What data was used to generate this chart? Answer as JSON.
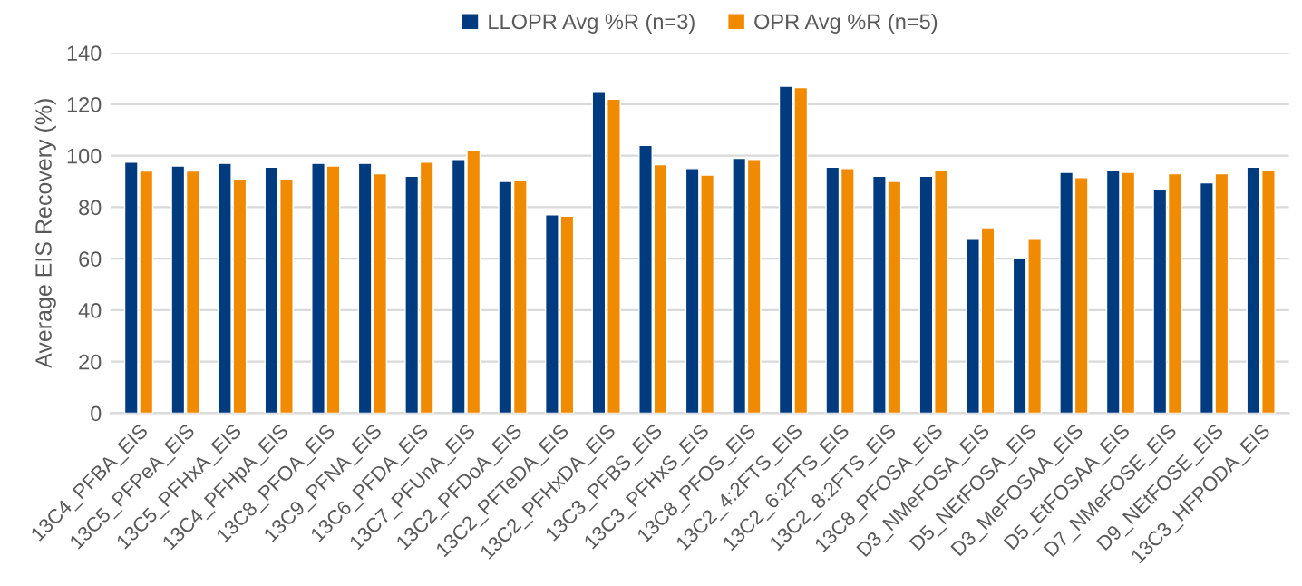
{
  "chart_data": {
    "type": "bar",
    "ylabel": "Average EIS Recovery (%)",
    "categories": [
      "13C4_PFBA_EIS",
      "13C5_PFPeA_EIS",
      "13C5_PFHxA_EIS",
      "13C4_PFHpA_EIS",
      "13C8_PFOA_EIS",
      "13C9_PFNA_EIS",
      "13C6_PFDA_EIS",
      "13C7_PFUnA_EIS",
      "13C2_PFDoA_EIS",
      "13C2_PFTeDA_EIS",
      "13C2_PFHxDA_EIS",
      "13C3_PFBS_EIS",
      "13C3_PFHxS_EIS",
      "13C8_PFOS_EIS",
      "13C2_4:2FTS_EIS",
      "13C2_6:2FTS_EIS",
      "13C2_8:2FTS_EIS",
      "13C8_PFOSA_EIS",
      "D3_NMeFOSA_EIS",
      "D5_NEtFOSA_EIS",
      "D3_MeFOSAA_EIS",
      "D5_EtFOSAA_EIS",
      "D7_NMeFOSE_EIS",
      "D9_NEtFOSE_EIS",
      "13C3_HFPODA_EIS"
    ],
    "series": [
      {
        "name": "LLOPR Avg %R (n=3)",
        "color": "#003b7f",
        "values": [
          97.5,
          96,
          97,
          95.5,
          97,
          97,
          92,
          98.5,
          90,
          77,
          125,
          104,
          95,
          99,
          127,
          95.5,
          92,
          92,
          67.5,
          60,
          93.5,
          94.5,
          87,
          89.5,
          95.5
        ]
      },
      {
        "name": "OPR Avg %R (n=5)",
        "color": "#f08a00",
        "values": [
          94,
          94,
          91,
          91,
          96,
          93,
          97.5,
          102,
          90.5,
          76.5,
          122,
          96.5,
          92.5,
          98.5,
          126.5,
          95,
          90,
          94.5,
          72,
          67.5,
          91.5,
          93.5,
          93,
          93,
          94.5
        ]
      }
    ],
    "ylim": [
      0,
      140
    ],
    "yticks": [
      0,
      20,
      40,
      60,
      80,
      100,
      120,
      140
    ],
    "grid": "y",
    "legend": "top"
  }
}
